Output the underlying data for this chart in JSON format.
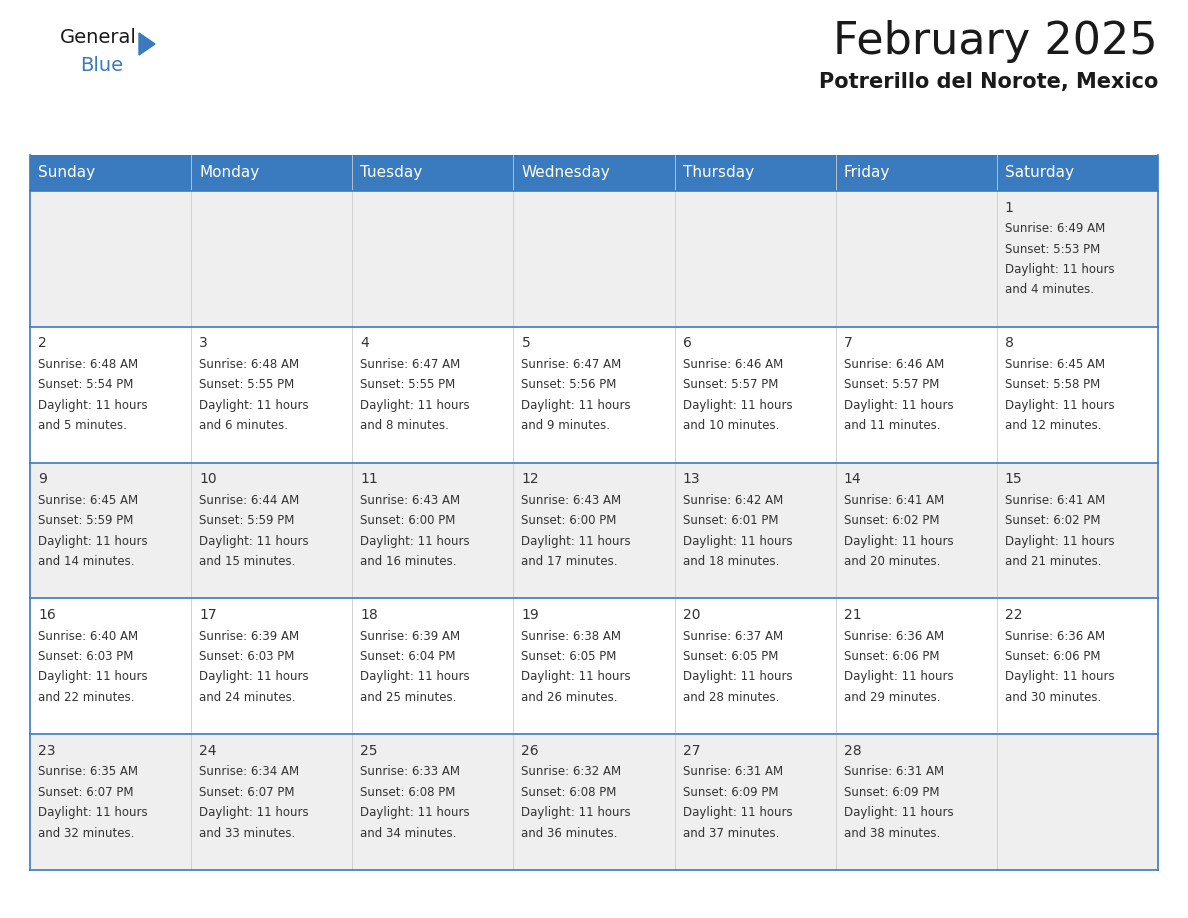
{
  "title": "February 2025",
  "subtitle": "Potrerillo del Norote, Mexico",
  "header_color": "#3a7abf",
  "header_text_color": "#ffffff",
  "row_bg_odd": "#efefef",
  "row_bg_even": "#ffffff",
  "border_color": "#3a7abf",
  "text_color": "#333333",
  "day_headers": [
    "Sunday",
    "Monday",
    "Tuesday",
    "Wednesday",
    "Thursday",
    "Friday",
    "Saturday"
  ],
  "calendar_data": [
    [
      null,
      null,
      null,
      null,
      null,
      null,
      {
        "day": 1,
        "sunrise": "6:49 AM",
        "sunset": "5:53 PM",
        "daylight": "11 hours",
        "daylight2": "and 4 minutes."
      }
    ],
    [
      {
        "day": 2,
        "sunrise": "6:48 AM",
        "sunset": "5:54 PM",
        "daylight": "11 hours",
        "daylight2": "and 5 minutes."
      },
      {
        "day": 3,
        "sunrise": "6:48 AM",
        "sunset": "5:55 PM",
        "daylight": "11 hours",
        "daylight2": "and 6 minutes."
      },
      {
        "day": 4,
        "sunrise": "6:47 AM",
        "sunset": "5:55 PM",
        "daylight": "11 hours",
        "daylight2": "and 8 minutes."
      },
      {
        "day": 5,
        "sunrise": "6:47 AM",
        "sunset": "5:56 PM",
        "daylight": "11 hours",
        "daylight2": "and 9 minutes."
      },
      {
        "day": 6,
        "sunrise": "6:46 AM",
        "sunset": "5:57 PM",
        "daylight": "11 hours",
        "daylight2": "and 10 minutes."
      },
      {
        "day": 7,
        "sunrise": "6:46 AM",
        "sunset": "5:57 PM",
        "daylight": "11 hours",
        "daylight2": "and 11 minutes."
      },
      {
        "day": 8,
        "sunrise": "6:45 AM",
        "sunset": "5:58 PM",
        "daylight": "11 hours",
        "daylight2": "and 12 minutes."
      }
    ],
    [
      {
        "day": 9,
        "sunrise": "6:45 AM",
        "sunset": "5:59 PM",
        "daylight": "11 hours",
        "daylight2": "and 14 minutes."
      },
      {
        "day": 10,
        "sunrise": "6:44 AM",
        "sunset": "5:59 PM",
        "daylight": "11 hours",
        "daylight2": "and 15 minutes."
      },
      {
        "day": 11,
        "sunrise": "6:43 AM",
        "sunset": "6:00 PM",
        "daylight": "11 hours",
        "daylight2": "and 16 minutes."
      },
      {
        "day": 12,
        "sunrise": "6:43 AM",
        "sunset": "6:00 PM",
        "daylight": "11 hours",
        "daylight2": "and 17 minutes."
      },
      {
        "day": 13,
        "sunrise": "6:42 AM",
        "sunset": "6:01 PM",
        "daylight": "11 hours",
        "daylight2": "and 18 minutes."
      },
      {
        "day": 14,
        "sunrise": "6:41 AM",
        "sunset": "6:02 PM",
        "daylight": "11 hours",
        "daylight2": "and 20 minutes."
      },
      {
        "day": 15,
        "sunrise": "6:41 AM",
        "sunset": "6:02 PM",
        "daylight": "11 hours",
        "daylight2": "and 21 minutes."
      }
    ],
    [
      {
        "day": 16,
        "sunrise": "6:40 AM",
        "sunset": "6:03 PM",
        "daylight": "11 hours",
        "daylight2": "and 22 minutes."
      },
      {
        "day": 17,
        "sunrise": "6:39 AM",
        "sunset": "6:03 PM",
        "daylight": "11 hours",
        "daylight2": "and 24 minutes."
      },
      {
        "day": 18,
        "sunrise": "6:39 AM",
        "sunset": "6:04 PM",
        "daylight": "11 hours",
        "daylight2": "and 25 minutes."
      },
      {
        "day": 19,
        "sunrise": "6:38 AM",
        "sunset": "6:05 PM",
        "daylight": "11 hours",
        "daylight2": "and 26 minutes."
      },
      {
        "day": 20,
        "sunrise": "6:37 AM",
        "sunset": "6:05 PM",
        "daylight": "11 hours",
        "daylight2": "and 28 minutes."
      },
      {
        "day": 21,
        "sunrise": "6:36 AM",
        "sunset": "6:06 PM",
        "daylight": "11 hours",
        "daylight2": "and 29 minutes."
      },
      {
        "day": 22,
        "sunrise": "6:36 AM",
        "sunset": "6:06 PM",
        "daylight": "11 hours",
        "daylight2": "and 30 minutes."
      }
    ],
    [
      {
        "day": 23,
        "sunrise": "6:35 AM",
        "sunset": "6:07 PM",
        "daylight": "11 hours",
        "daylight2": "and 32 minutes."
      },
      {
        "day": 24,
        "sunrise": "6:34 AM",
        "sunset": "6:07 PM",
        "daylight": "11 hours",
        "daylight2": "and 33 minutes."
      },
      {
        "day": 25,
        "sunrise": "6:33 AM",
        "sunset": "6:08 PM",
        "daylight": "11 hours",
        "daylight2": "and 34 minutes."
      },
      {
        "day": 26,
        "sunrise": "6:32 AM",
        "sunset": "6:08 PM",
        "daylight": "11 hours",
        "daylight2": "and 36 minutes."
      },
      {
        "day": 27,
        "sunrise": "6:31 AM",
        "sunset": "6:09 PM",
        "daylight": "11 hours",
        "daylight2": "and 37 minutes."
      },
      {
        "day": 28,
        "sunrise": "6:31 AM",
        "sunset": "6:09 PM",
        "daylight": "11 hours",
        "daylight2": "and 38 minutes."
      },
      null
    ]
  ],
  "logo_text_general": "General",
  "logo_text_blue": "Blue",
  "logo_color_general": "#1a1a1a",
  "logo_color_blue": "#3a7abf",
  "title_fontsize": 32,
  "subtitle_fontsize": 15,
  "header_fontsize": 11,
  "day_num_fontsize": 10,
  "cell_fontsize": 8.5
}
